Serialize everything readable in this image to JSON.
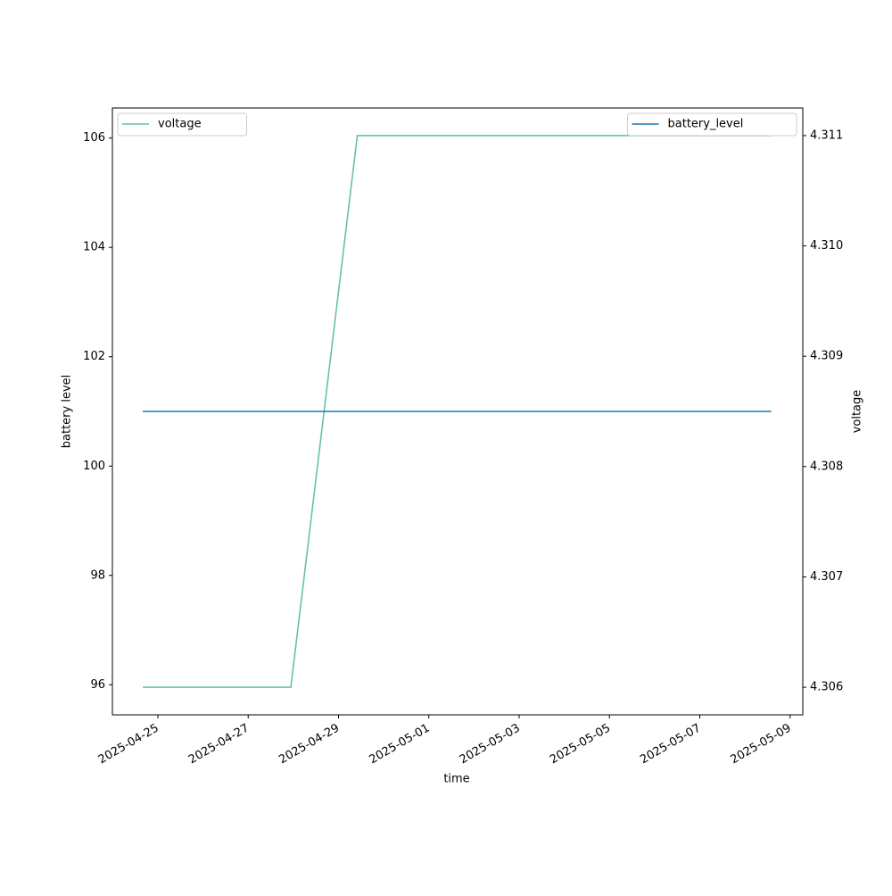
{
  "chart_data": {
    "type": "line",
    "xlabel": "time",
    "ylabel": "battery level",
    "y2label": "voltage",
    "xlim": [
      "2025-04-23T23:50",
      "2025-05-09T06:45"
    ],
    "xticks": [
      "2025-04-25",
      "2025-04-27",
      "2025-04-29",
      "2025-05-01",
      "2025-05-03",
      "2025-05-05",
      "2025-05-07",
      "2025-05-09"
    ],
    "ylim": [
      95.45,
      106.55
    ],
    "yticks": [
      96,
      98,
      100,
      102,
      104,
      106
    ],
    "y2lim": [
      4.30575,
      4.31125
    ],
    "y2ticks": [
      4.306,
      4.307,
      4.308,
      4.309,
      {
        "value": 4.31,
        "label": "4.310"
      },
      4.311
    ],
    "series": [
      {
        "name": "voltage",
        "color": "#66c2a5",
        "axis": "y2",
        "legend": "upper left",
        "x": [
          "2025-04-24T16:00",
          "2025-04-27T22:40",
          "2025-04-29T10:00",
          "2025-05-08T14:00"
        ],
        "values": [
          4.306,
          4.306,
          4.311,
          4.311
        ]
      },
      {
        "name": "battery_level",
        "color": "#1f77b4",
        "axis": "y",
        "legend": "upper right",
        "x": [
          "2025-04-24T16:00",
          "2025-05-08T14:00"
        ],
        "values": [
          101,
          101
        ]
      }
    ]
  }
}
